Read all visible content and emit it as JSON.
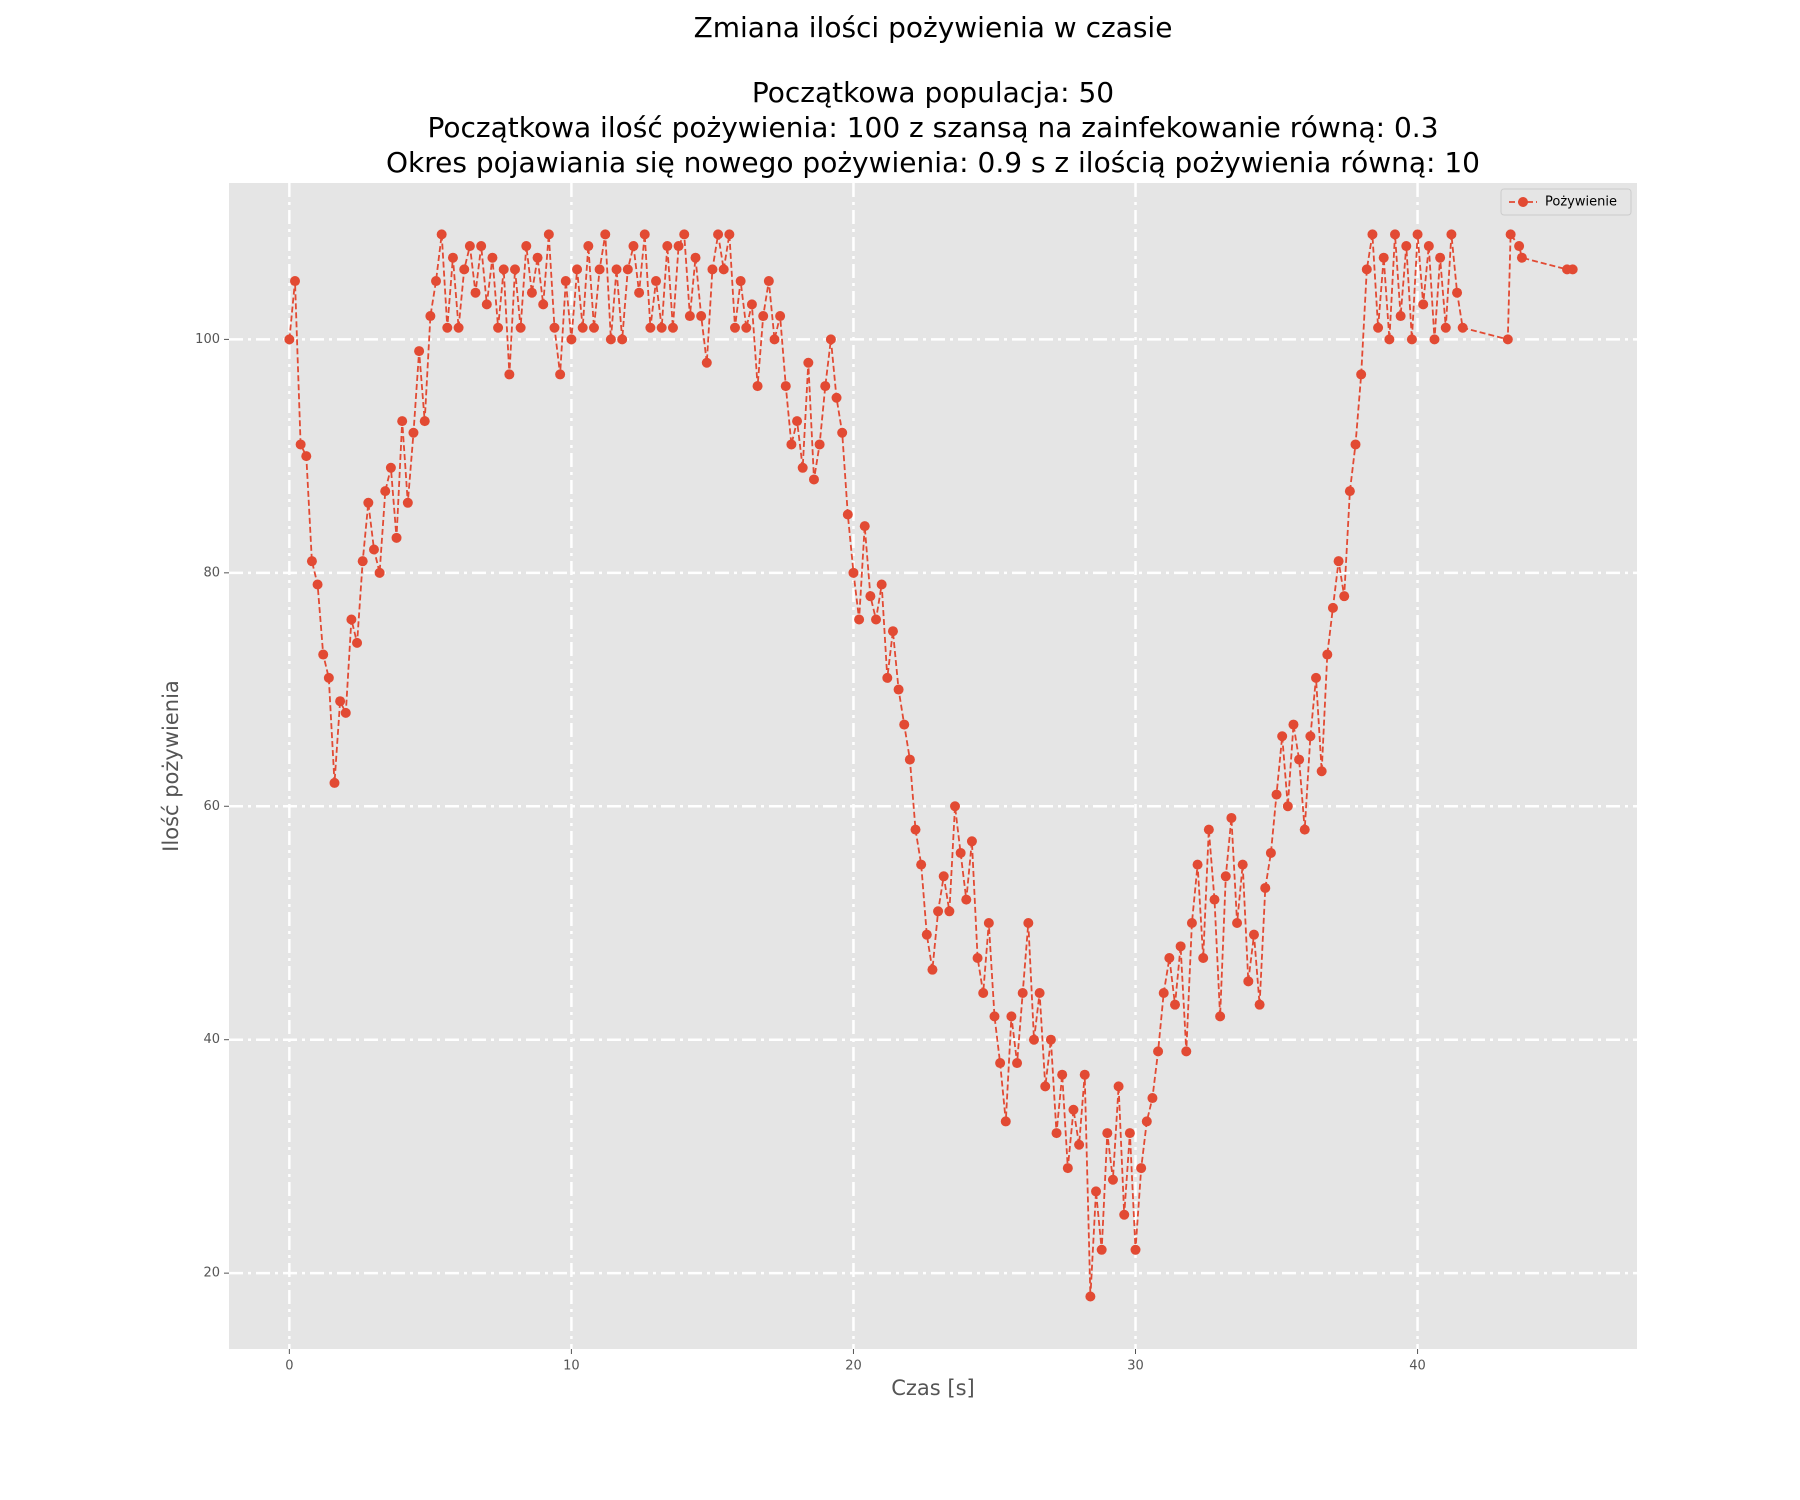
{
  "chart_data": {
    "type": "line",
    "title": "Zmiana ilości pożywienia w czasie",
    "subtitle": [
      "Początkowa populacja: 50",
      "Początkowa ilość pożywienia: 100 z szansą na zainfekowanie równą: 0.3",
      "Okres pojawiania się nowego pożywienia: 0.9 s z ilością pożywienia równą: 10"
    ],
    "xlabel": "Czas [s]",
    "ylabel": "Ilość pożywienia",
    "x": [
      0,
      0.2,
      0.4,
      0.6,
      0.8,
      1.0,
      1.2,
      1.4,
      1.6,
      1.8,
      2.0,
      2.2,
      2.4,
      2.6,
      2.8,
      3.0,
      3.2,
      3.4,
      3.6,
      3.8,
      4.0,
      4.2,
      4.4,
      4.6,
      4.8,
      5.0,
      5.2,
      5.4,
      5.6,
      5.8,
      6.0,
      6.2,
      6.4,
      6.6,
      6.8,
      7.0,
      7.2,
      7.4,
      7.6,
      7.8,
      8.0,
      8.2,
      8.4,
      8.6,
      8.8,
      9.0,
      9.2,
      9.4,
      9.6,
      9.8,
      10.0,
      10.2,
      10.4,
      10.6,
      10.8,
      11.0,
      11.2,
      11.4,
      11.6,
      11.8,
      12.0,
      12.2,
      12.4,
      12.6,
      12.8,
      13.0,
      13.2,
      13.4,
      13.6,
      13.8,
      14.0,
      14.2,
      14.4,
      14.6,
      14.8,
      15.0,
      15.2,
      15.4,
      15.6,
      15.8,
      16.0,
      16.2,
      16.4,
      16.6,
      16.8,
      17.0,
      17.2,
      17.4,
      17.6,
      17.8,
      18.0,
      18.2,
      18.4,
      18.6,
      18.8,
      19.0,
      19.2,
      19.4,
      19.6,
      19.8,
      20.0,
      20.2,
      20.4,
      20.6,
      20.8,
      21.0,
      21.2,
      21.4,
      21.6,
      21.8,
      22.0,
      22.2,
      22.4,
      22.6,
      22.8,
      23.0,
      23.2,
      23.4,
      23.6,
      23.8,
      24.0,
      24.2,
      24.4,
      24.6,
      24.8,
      25.0,
      25.2,
      25.4,
      25.6,
      25.8,
      26.0,
      26.2,
      26.4,
      26.6,
      26.8,
      27.0,
      27.2,
      27.4,
      27.6,
      27.8,
      28.0,
      28.2,
      28.4,
      28.6,
      28.8,
      29.0,
      29.2,
      29.4,
      29.6,
      29.8,
      30.0,
      30.2,
      30.4,
      30.6,
      30.8,
      31.0,
      31.2,
      31.4,
      31.6,
      31.8,
      32.0,
      32.2,
      32.4,
      32.6,
      32.8,
      33.0,
      33.2,
      33.4,
      33.6,
      33.8,
      34.0,
      34.2,
      34.4,
      34.6,
      34.8,
      35.0,
      35.2,
      35.4,
      35.6,
      35.8,
      36.0,
      36.2,
      36.4,
      36.6,
      36.8,
      37.0,
      37.2,
      37.4,
      37.6,
      37.8,
      38.0,
      38.2,
      38.4,
      38.6,
      38.8,
      39.0,
      39.2,
      39.4,
      39.6,
      39.8,
      40.0,
      40.2,
      40.4,
      40.6,
      40.8,
      41.0,
      41.2,
      41.4,
      41.6,
      43.2,
      43.3,
      43.6,
      43.7,
      45.3,
      45.5
    ],
    "series": [
      {
        "name": "Pożywienie",
        "color": "#e24a33",
        "values": [
          100,
          105,
          91,
          90,
          81,
          79,
          73,
          71,
          62,
          69,
          68,
          76,
          74,
          81,
          86,
          82,
          80,
          87,
          89,
          83,
          93,
          86,
          92,
          99,
          93,
          102,
          105,
          109,
          101,
          107,
          101,
          106,
          108,
          104,
          108,
          103,
          107,
          101,
          106,
          97,
          106,
          101,
          108,
          104,
          107,
          103,
          109,
          101,
          97,
          105,
          100,
          106,
          101,
          108,
          101,
          106,
          109,
          100,
          106,
          100,
          106,
          108,
          104,
          109,
          101,
          105,
          101,
          108,
          101,
          108,
          109,
          102,
          107,
          102,
          98,
          106,
          109,
          106,
          109,
          101,
          105,
          101,
          103,
          96,
          102,
          105,
          100,
          102,
          96,
          91,
          93,
          89,
          98,
          88,
          91,
          96,
          100,
          95,
          92,
          85,
          80,
          76,
          84,
          78,
          76,
          79,
          71,
          75,
          70,
          67,
          64,
          58,
          55,
          49,
          46,
          51,
          54,
          51,
          60,
          56,
          52,
          57,
          47,
          44,
          50,
          42,
          38,
          33,
          42,
          38,
          44,
          50,
          40,
          44,
          36,
          40,
          32,
          37,
          29,
          34,
          31,
          37,
          18,
          27,
          22,
          32,
          28,
          36,
          25,
          32,
          22,
          29,
          33,
          35,
          39,
          44,
          47,
          43,
          48,
          39,
          50,
          55,
          47,
          58,
          52,
          42,
          54,
          59,
          50,
          55,
          45,
          49,
          43,
          53,
          56,
          61,
          66,
          60,
          67,
          64,
          58,
          66,
          71,
          63,
          73,
          77,
          81,
          78,
          87,
          91,
          97,
          106,
          109,
          101,
          107,
          100,
          109,
          102,
          108,
          100,
          109,
          103,
          108,
          100,
          107,
          101,
          109,
          104,
          101,
          100,
          109,
          108,
          107,
          106,
          106
        ]
      }
    ],
    "xlim": [
      -2.14,
      47.78
    ],
    "ylim": [
      13.5,
      113.4
    ],
    "xticks": [
      0,
      10,
      20,
      30,
      40
    ],
    "yticks": [
      20,
      40,
      60,
      80,
      100
    ],
    "grid": true,
    "legend": "upper right"
  }
}
